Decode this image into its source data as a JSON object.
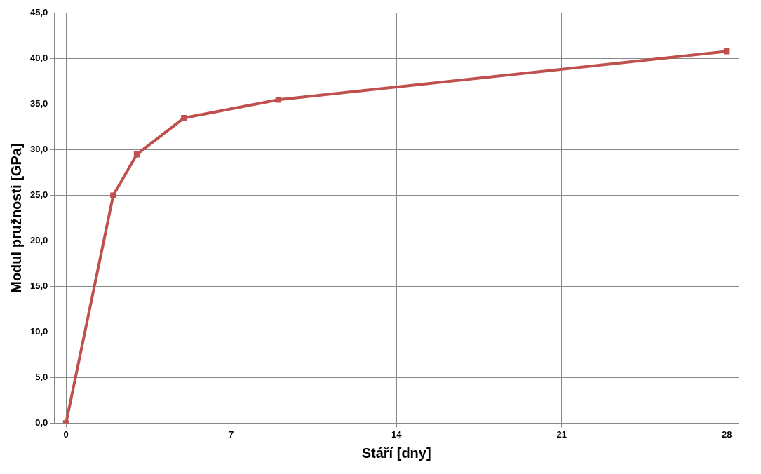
{
  "chart_data": {
    "type": "line",
    "xlabel": "Stáří [dny]",
    "ylabel": "Modul pružnosti [GPa]",
    "x": [
      0,
      2,
      3,
      5,
      9,
      28
    ],
    "series": [
      {
        "color": "#c0504d",
        "values": [
          0,
          25,
          29.5,
          33.5,
          35.5,
          40.8
        ]
      }
    ],
    "xlim": [
      -0.5,
      28.5
    ],
    "xticks": [
      0,
      7,
      14,
      21,
      28
    ],
    "ylim": [
      0,
      45
    ],
    "yticks": [
      {
        "value": 0,
        "label": "0,0"
      },
      {
        "value": 5,
        "label": "5,0"
      },
      {
        "value": 10,
        "label": "10,0"
      },
      {
        "value": 15,
        "label": "15,0"
      },
      {
        "value": 20,
        "label": "20,0"
      },
      {
        "value": 25,
        "label": "25,0"
      },
      {
        "value": 30,
        "label": "30,0"
      },
      {
        "value": 35,
        "label": "35,0"
      },
      {
        "value": 40,
        "label": "40,0"
      },
      {
        "value": 45,
        "label": "45,0"
      }
    ],
    "grid": true,
    "legend": false,
    "marker": "square",
    "line_style": "solid"
  }
}
